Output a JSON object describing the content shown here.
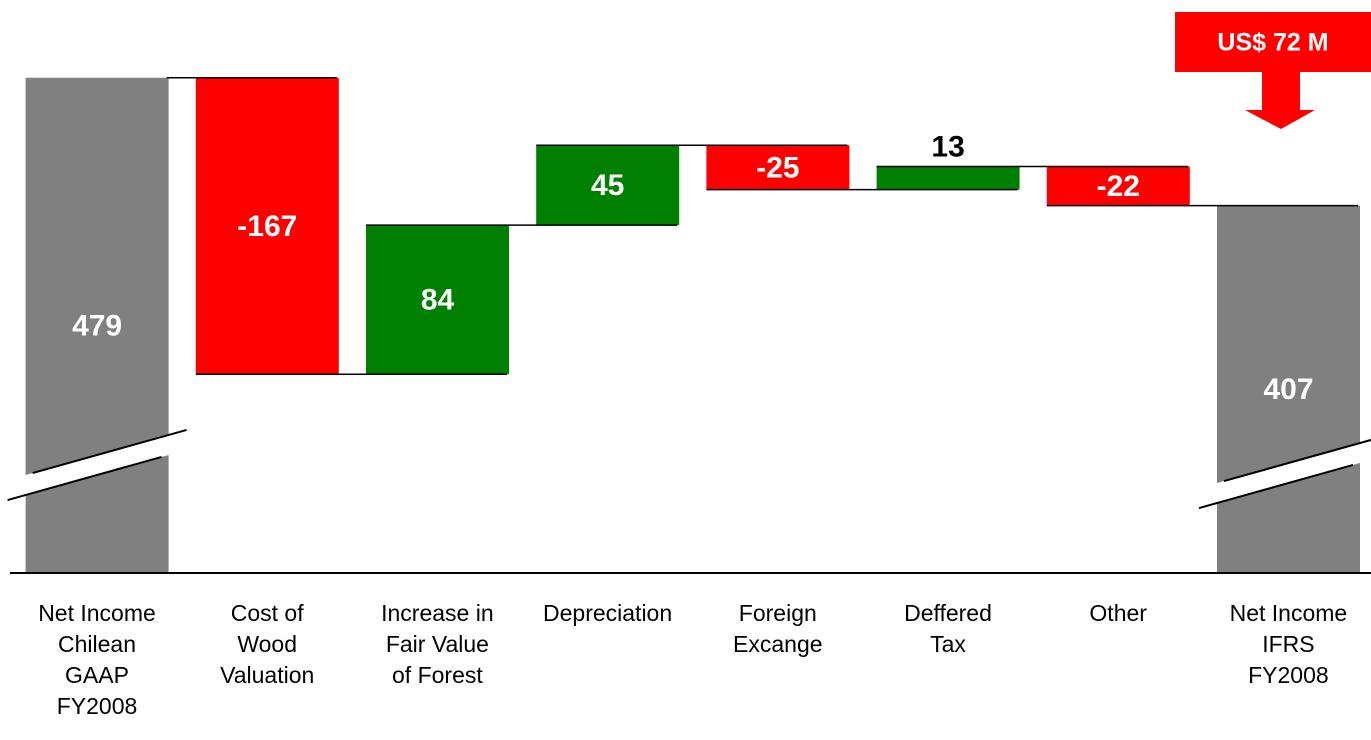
{
  "chart_data": {
    "type": "waterfall",
    "categories": [
      "Net Income\nChilean\nGAAP\nFY2008",
      "Cost of\nWood\nValuation",
      "Increase in\nFair Value\nof Forest",
      "Depreciation",
      "Foreign\nExcange",
      "Deffered\nTax",
      "Other",
      "Net Income\nIFRS\nFY2008"
    ],
    "values": [
      479,
      -167,
      84,
      45,
      -25,
      13,
      -22,
      407
    ],
    "measure": [
      "absolute",
      "relative",
      "relative",
      "relative",
      "relative",
      "relative",
      "relative",
      "absolute"
    ],
    "colors": [
      "#808080",
      "#ff0000",
      "#008000",
      "#008000",
      "#ff0000",
      "#008000",
      "#ff0000",
      "#808080"
    ],
    "ylim": [
      200,
      520
    ],
    "axis_break": true,
    "annotation": "US$ 72 M",
    "annotation_color": "#ff0000"
  }
}
